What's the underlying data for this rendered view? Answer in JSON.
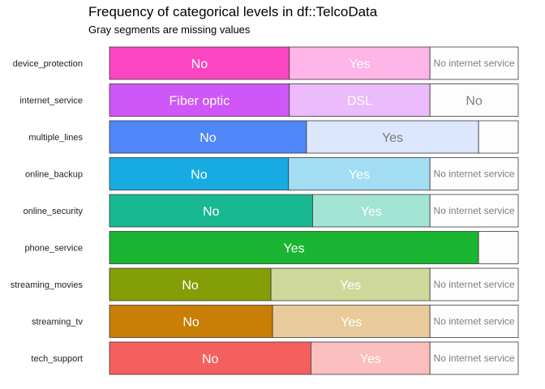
{
  "title": "Frequency of categorical levels in df::TelcoData",
  "subtitle": "Gray segments are missing values",
  "chart_data": {
    "type": "bar",
    "orientation": "horizontal",
    "stacked": "proportional",
    "xlim": [
      0,
      1
    ],
    "grid": false,
    "legend": "none",
    "rows": [
      {
        "label": "device_protection",
        "color": "#FC46C3",
        "segments": [
          {
            "level": "No",
            "share": 0.44
          },
          {
            "level": "Yes",
            "share": 0.344
          },
          {
            "level": "No internet service",
            "share": 0.216
          }
        ]
      },
      {
        "label": "internet_service",
        "color": "#CF56F7",
        "segments": [
          {
            "level": "Fiber optic",
            "share": 0.44
          },
          {
            "level": "DSL",
            "share": 0.344
          },
          {
            "level": "No",
            "share": 0.216
          }
        ]
      },
      {
        "label": "multiple_lines",
        "color": "#4F86F8",
        "segments": [
          {
            "level": "No",
            "share": 0.482
          },
          {
            "level": "Yes",
            "share": 0.421
          },
          {
            "level": "",
            "share": 0.097
          }
        ]
      },
      {
        "label": "online_backup",
        "color": "#17ABE1",
        "segments": [
          {
            "level": "No",
            "share": 0.438
          },
          {
            "level": "Yes",
            "share": 0.346
          },
          {
            "level": "No internet service",
            "share": 0.216
          }
        ]
      },
      {
        "label": "online_security",
        "color": "#18B890",
        "segments": [
          {
            "level": "No",
            "share": 0.497
          },
          {
            "level": "Yes",
            "share": 0.287
          },
          {
            "level": "No internet service",
            "share": 0.216
          }
        ]
      },
      {
        "label": "phone_service",
        "color": "#1AB531",
        "segments": [
          {
            "level": "Yes",
            "share": 0.903
          },
          {
            "level": "",
            "share": 0.097
          }
        ]
      },
      {
        "label": "streaming_movies",
        "color": "#849E05",
        "segments": [
          {
            "level": "No",
            "share": 0.395
          },
          {
            "level": "Yes",
            "share": 0.389
          },
          {
            "level": "No internet service",
            "share": 0.216
          }
        ]
      },
      {
        "label": "streaming_tv",
        "color": "#C97E05",
        "segments": [
          {
            "level": "No",
            "share": 0.399
          },
          {
            "level": "Yes",
            "share": 0.385
          },
          {
            "level": "No internet service",
            "share": 0.216
          }
        ]
      },
      {
        "label": "tech_support",
        "color": "#F5605E",
        "segments": [
          {
            "level": "No",
            "share": 0.493
          },
          {
            "level": "Yes",
            "share": 0.291
          },
          {
            "level": "No internet service",
            "share": 0.216
          }
        ]
      }
    ]
  }
}
